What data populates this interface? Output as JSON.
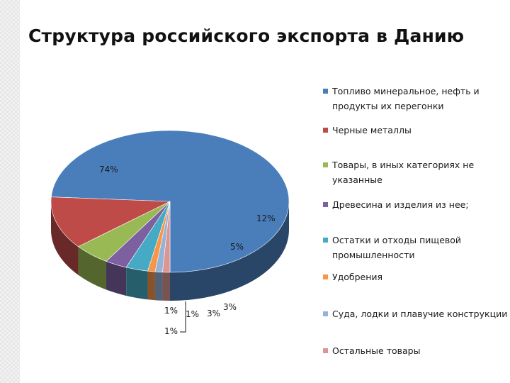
{
  "title": "Структура российского экспорта в Данию",
  "chart_data": {
    "type": "pie",
    "title": "",
    "slices": [
      {
        "name": "Топливо минеральное, нефть и продукты их перегонки",
        "value": 74,
        "label": "74%",
        "color": "#4a7ebb"
      },
      {
        "name": "Черные металлы",
        "value": 12,
        "label": "12%",
        "color": "#be4b48"
      },
      {
        "name": "Товары, в иных категориях не указанные",
        "value": 5,
        "label": "5%",
        "color": "#98b954"
      },
      {
        "name": "Древесина и изделия из нее;",
        "value": 3,
        "label": "3%",
        "color": "#7d60a0"
      },
      {
        "name": "Остатки и отходы пищевой промышленности",
        "value": 3,
        "label": "3%",
        "color": "#46aac5"
      },
      {
        "name": "Удобрения",
        "value": 1,
        "label": "1%",
        "color": "#f79646"
      },
      {
        "name": "Суда, лодки и плавучие конструкции",
        "value": 1,
        "label": "1%",
        "color": "#95b3d7"
      },
      {
        "name": "Остальные товары",
        "value": 1,
        "label": "1%",
        "color": "#d99694"
      }
    ],
    "legend_position": "right"
  }
}
